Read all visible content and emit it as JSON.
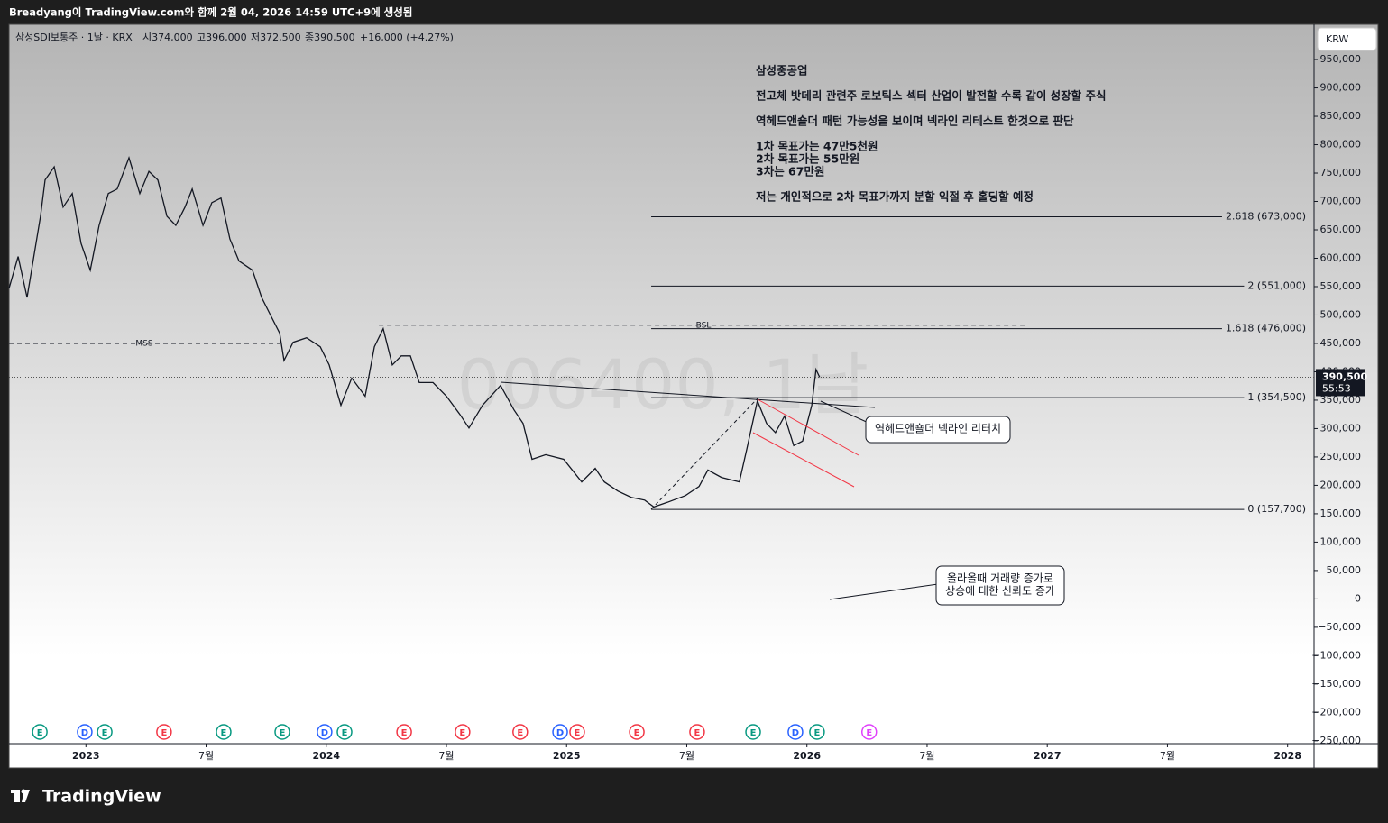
{
  "caption": "Breadyang이 TradingView.com와 함께 2월 04, 2026 14:59 UTC+9에 생성됨",
  "footer_logo": "TradingView",
  "chart_data": {
    "type": "line",
    "symbol_info": "삼성SDI보통주 · 1날 · KRX",
    "ohlc": [
      "시374,000",
      "고396,000",
      "저372,500",
      "종390,500",
      "+16,000 (+4.27%)"
    ],
    "watermark": "006400, 1날",
    "currency_button": "KRW",
    "notes": [
      "삼성중공업",
      "전고체 밧데리 관련주 로보틱스 섹터 산업이 발전할 수록 같이 성장할 주식",
      "역헤드앤숄더 패턴 가능성을 보이며 넥라인 리테스트 한것으로 판단",
      "1차 목표가는 47만5천원",
      "2차 목표가는 55만원",
      "3차는 67만원",
      "저는 개인적으로 2차 목표가까지 분할 익절 후 홀딩할 예정"
    ],
    "callouts": [
      [
        "역헤드앤숄더 넥라인 리터치"
      ],
      [
        "올라올때 거래량 증가로",
        "상승에 대한 신뢰도 증가"
      ]
    ],
    "series": [
      {
        "name": "삼성SDI보통주",
        "color": "#131722",
        "x": [
          2022.68,
          2022.718,
          2022.755,
          2022.811,
          2022.83,
          2022.868,
          2022.905,
          2022.943,
          2022.98,
          2023.018,
          2023.055,
          2023.093,
          2023.13,
          2023.179,
          2023.224,
          2023.262,
          2023.299,
          2023.337,
          2023.374,
          2023.412,
          2023.442,
          2023.487,
          2023.524,
          2023.562,
          2023.599,
          2023.637,
          2023.693,
          2023.731,
          2023.768,
          2023.806,
          2023.824,
          2023.862,
          2023.918,
          2023.975,
          2024.012,
          2024.061,
          2024.106,
          2024.162,
          2024.2,
          2024.237,
          2024.275,
          2024.312,
          2024.35,
          2024.387,
          2024.444,
          2024.5,
          2024.556,
          2024.594,
          2024.65,
          2024.725,
          2024.781,
          2024.819,
          2024.856,
          2024.913,
          2024.988,
          2025.063,
          2025.119,
          2025.157,
          2025.213,
          2025.269,
          2025.325,
          2025.363,
          2025.419,
          2025.494,
          2025.551,
          2025.588,
          2025.644,
          2025.719,
          2025.749,
          2025.794,
          2025.832,
          2025.869,
          2025.907,
          2025.945,
          2025.982,
          2026.02,
          2026.038,
          2026.053
        ],
        "values": [
          547000,
          603000,
          531000,
          674000,
          738000,
          761000,
          690000,
          714000,
          626000,
          579000,
          658000,
          714000,
          722000,
          777000,
          714000,
          753000,
          738000,
          674000,
          658000,
          690000,
          722000,
          658000,
          698000,
          706000,
          634000,
          595000,
          579000,
          531000,
          500000,
          468000,
          420000,
          452000,
          460000,
          444000,
          412000,
          341000,
          389000,
          357000,
          444000,
          476000,
          412000,
          428000,
          428000,
          381000,
          381000,
          357000,
          325000,
          301000,
          341000,
          376000,
          333000,
          309000,
          246000,
          254000,
          246000,
          206000,
          230000,
          206000,
          190000,
          179000,
          174000,
          162000,
          170000,
          182000,
          198000,
          227000,
          214000,
          206000,
          262000,
          349000,
          309000,
          293000,
          322000,
          270000,
          278000,
          341000,
          404000,
          390500
        ]
      }
    ],
    "last_price": {
      "value": 390500,
      "label": "390,500"
    },
    "countdown": "55:53",
    "fib_levels": [
      {
        "value": 673000,
        "label": "2.618 (673,000)"
      },
      {
        "value": 551000,
        "label": "2 (551,000)"
      },
      {
        "value": 476000,
        "label": "1.618 (476,000)"
      },
      {
        "value": 354500,
        "label": "1 (354,500)"
      },
      {
        "value": 157700,
        "label": "0 (157,700)"
      }
    ],
    "fib_start": 2025.352,
    "levels": [
      {
        "name": "MSS",
        "value": 450000,
        "from": 2022.68,
        "to": 2023.806
      },
      {
        "name": "BSL",
        "value": 482000,
        "from": 2024.219,
        "to": 2026.92
      }
    ],
    "events": [
      {
        "x": 2022.808,
        "label": "E",
        "color": "#089981"
      },
      {
        "x": 2022.995,
        "label": "D",
        "color": "#2962ff"
      },
      {
        "x": 2023.078,
        "label": "E",
        "color": "#089981"
      },
      {
        "x": 2023.325,
        "label": "E",
        "color": "#f23645"
      },
      {
        "x": 2023.573,
        "label": "E",
        "color": "#089981"
      },
      {
        "x": 2023.817,
        "label": "E",
        "color": "#089981"
      },
      {
        "x": 2023.993,
        "label": "D",
        "color": "#2962ff"
      },
      {
        "x": 2024.076,
        "label": "E",
        "color": "#089981"
      },
      {
        "x": 2024.324,
        "label": "E",
        "color": "#f23645"
      },
      {
        "x": 2024.567,
        "label": "E",
        "color": "#f23645"
      },
      {
        "x": 2024.807,
        "label": "E",
        "color": "#f23645"
      },
      {
        "x": 2024.973,
        "label": "D",
        "color": "#2962ff"
      },
      {
        "x": 2025.044,
        "label": "E",
        "color": "#f23645"
      },
      {
        "x": 2025.292,
        "label": "E",
        "color": "#f23645"
      },
      {
        "x": 2025.543,
        "label": "E",
        "color": "#f23645"
      },
      {
        "x": 2025.776,
        "label": "E",
        "color": "#089981"
      },
      {
        "x": 2025.952,
        "label": "D",
        "color": "#2962ff"
      },
      {
        "x": 2026.042,
        "label": "E",
        "color": "#089981"
      },
      {
        "x": 2026.259,
        "label": "E",
        "color": "#e040fb"
      }
    ],
    "xlim": [
      2022.68,
      2028.11
    ],
    "xticks": [
      2023,
      {
        "value": 2023.5,
        "label": "7월"
      },
      2024,
      {
        "value": 2024.5,
        "label": "7월"
      },
      2025,
      {
        "value": 2025.5,
        "label": "7월"
      },
      2026,
      {
        "value": 2026.5,
        "label": "7월"
      },
      2027,
      {
        "value": 2027.5,
        "label": "7월"
      },
      2028
    ],
    "ylim": [
      -255000,
      1012000
    ],
    "yticks": [
      {
        "value": 950000,
        "label": "950,000"
      },
      {
        "value": 900000,
        "label": "900,000"
      },
      {
        "value": 850000,
        "label": "850,000"
      },
      {
        "value": 800000,
        "label": "800,000"
      },
      {
        "value": 750000,
        "label": "750,000"
      },
      {
        "value": 700000,
        "label": "700,000"
      },
      {
        "value": 650000,
        "label": "650,000"
      },
      {
        "value": 600000,
        "label": "600,000"
      },
      {
        "value": 550000,
        "label": "550,000"
      },
      {
        "value": 500000,
        "label": "500,000"
      },
      {
        "value": 450000,
        "label": "450,000"
      },
      {
        "value": 400000,
        "label": "400,000"
      },
      {
        "value": 350000,
        "label": "350,000"
      },
      {
        "value": 300000,
        "label": "300,000"
      },
      {
        "value": 250000,
        "label": "250,000"
      },
      {
        "value": 200000,
        "label": "200,000"
      },
      {
        "value": 150000,
        "label": "150,000"
      },
      {
        "value": 100000,
        "label": "100,000"
      },
      {
        "value": 50000,
        "label": "50,000"
      },
      0,
      {
        "value": -50000,
        "label": "−50,000"
      },
      {
        "value": -100000,
        "label": "−100,000"
      },
      {
        "value": -150000,
        "label": "−150,000"
      },
      {
        "value": -200000,
        "label": "−200,000"
      },
      {
        "value": -250000,
        "label": "−250,000"
      }
    ],
    "grid": false
  }
}
